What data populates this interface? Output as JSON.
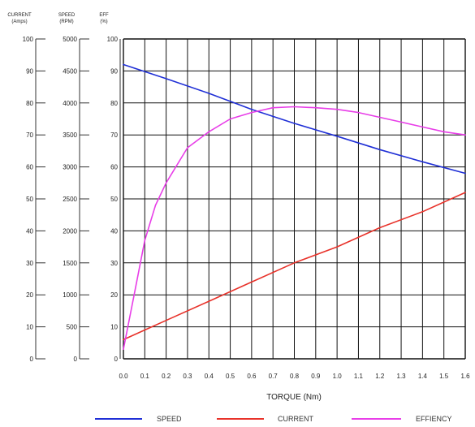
{
  "chart_data": {
    "type": "line",
    "xlabel": "TORQUE (Nm)",
    "x_ticks": [
      "0.0",
      "0.1",
      "0.2",
      "0.3",
      "0.4",
      "0.5",
      "0.6",
      "0.7",
      "0.8",
      "0.9",
      "1.0",
      "1.1",
      "1.2",
      "1.3",
      "1.4",
      "1.5",
      "1.6"
    ],
    "xlim": [
      0,
      1.6
    ],
    "grid": true,
    "axes": [
      {
        "id": "current",
        "header": [
          "CURRENT",
          "(Amps)"
        ],
        "ticks": [
          "0",
          "10",
          "20",
          "30",
          "40",
          "50",
          "60",
          "70",
          "80",
          "90",
          "100"
        ],
        "ylim": [
          0,
          100
        ]
      },
      {
        "id": "speed",
        "header": [
          "SPEED",
          "(RPM)"
        ],
        "ticks": [
          "0",
          "500",
          "1000",
          "1500",
          "2000",
          "2500",
          "3000",
          "3500",
          "4000",
          "4500",
          "5000"
        ],
        "ylim": [
          0,
          5000
        ]
      },
      {
        "id": "eff",
        "header": [
          "EFF",
          "(%)"
        ],
        "ticks": [
          "0",
          "10",
          "20",
          "30",
          "40",
          "50",
          "60",
          "70",
          "80",
          "90",
          "100"
        ],
        "ylim": [
          0,
          100
        ]
      }
    ],
    "series": [
      {
        "name": "SPEED",
        "axis": "speed",
        "color": "#1f2fd6",
        "x": [
          0.0,
          0.2,
          0.4,
          0.6,
          0.8,
          1.0,
          1.2,
          1.4,
          1.6
        ],
        "values": [
          4600,
          4380,
          4150,
          3900,
          3680,
          3480,
          3270,
          3080,
          2900
        ]
      },
      {
        "name": "CURRENT",
        "axis": "current",
        "color": "#e8322a",
        "x": [
          0.0,
          0.1,
          0.2,
          0.4,
          0.6,
          0.8,
          1.0,
          1.2,
          1.4,
          1.6
        ],
        "values": [
          6,
          9,
          12,
          18,
          24,
          30,
          35,
          41,
          46,
          52
        ]
      },
      {
        "name": "EFFIENCY",
        "axis": "eff",
        "color": "#e83ee8",
        "x": [
          0.0,
          0.05,
          0.1,
          0.15,
          0.2,
          0.3,
          0.4,
          0.5,
          0.6,
          0.7,
          0.8,
          0.9,
          1.0,
          1.1,
          1.2,
          1.3,
          1.4,
          1.5,
          1.6
        ],
        "values": [
          3,
          20,
          37,
          48,
          55,
          66,
          71,
          75,
          77,
          78.5,
          78.8,
          78.5,
          78,
          77,
          75.5,
          74,
          72.5,
          71,
          70
        ]
      }
    ]
  }
}
